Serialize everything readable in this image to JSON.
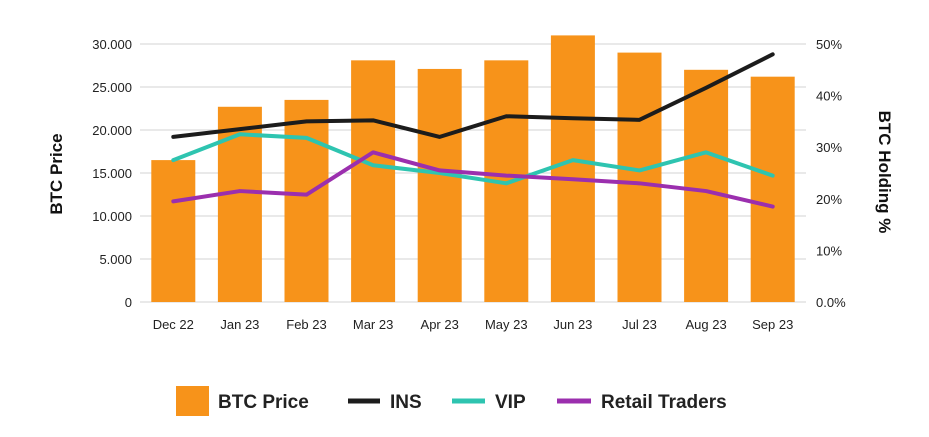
{
  "colors": {
    "btc_price": "#F7931A",
    "ins": "#1c1c1c",
    "vip": "#2EC4B0",
    "retail": "#9B2FAE",
    "grid": "#d3d3d3"
  },
  "chart_data": {
    "type": "bar",
    "categories": [
      "Dec 22",
      "Jan 23",
      "Feb 23",
      "Mar 23",
      "Apr 23",
      "May 23",
      "Jun 23",
      "Jul 23",
      "Aug 23",
      "Sep 23"
    ],
    "ylabel": "BTC Price",
    "y2label": "BTC Holding %",
    "ylim": [
      0,
      30000
    ],
    "y2lim": [
      0,
      50
    ],
    "yticks": [
      "0",
      "5.000",
      "10.000",
      "15.000",
      "20.000",
      "25.000",
      "30.000"
    ],
    "y2ticks": [
      "0.0%",
      "10%",
      "20%",
      "30%",
      "40%",
      "50%"
    ],
    "grid": true,
    "legend_position": "bottom",
    "series": [
      {
        "name": "BTC Price",
        "type": "bar",
        "axis": "left",
        "values": [
          16500,
          22700,
          23500,
          28100,
          27100,
          28100,
          31000,
          29000,
          27000,
          26200
        ]
      },
      {
        "name": "INS",
        "type": "line",
        "axis": "right",
        "values": [
          32.0,
          33.5,
          35.0,
          35.2,
          32.0,
          36.0,
          35.6,
          35.3,
          41.5,
          48.0
        ]
      },
      {
        "name": "VIP",
        "type": "line",
        "axis": "right",
        "values": [
          27.5,
          32.5,
          31.8,
          26.5,
          25.0,
          23.0,
          27.5,
          25.5,
          29.0,
          24.5
        ]
      },
      {
        "name": "Retail Traders",
        "type": "line",
        "axis": "right",
        "values": [
          19.5,
          21.5,
          20.8,
          29.0,
          25.5,
          24.5,
          23.8,
          23.0,
          21.5,
          18.5
        ]
      }
    ]
  }
}
